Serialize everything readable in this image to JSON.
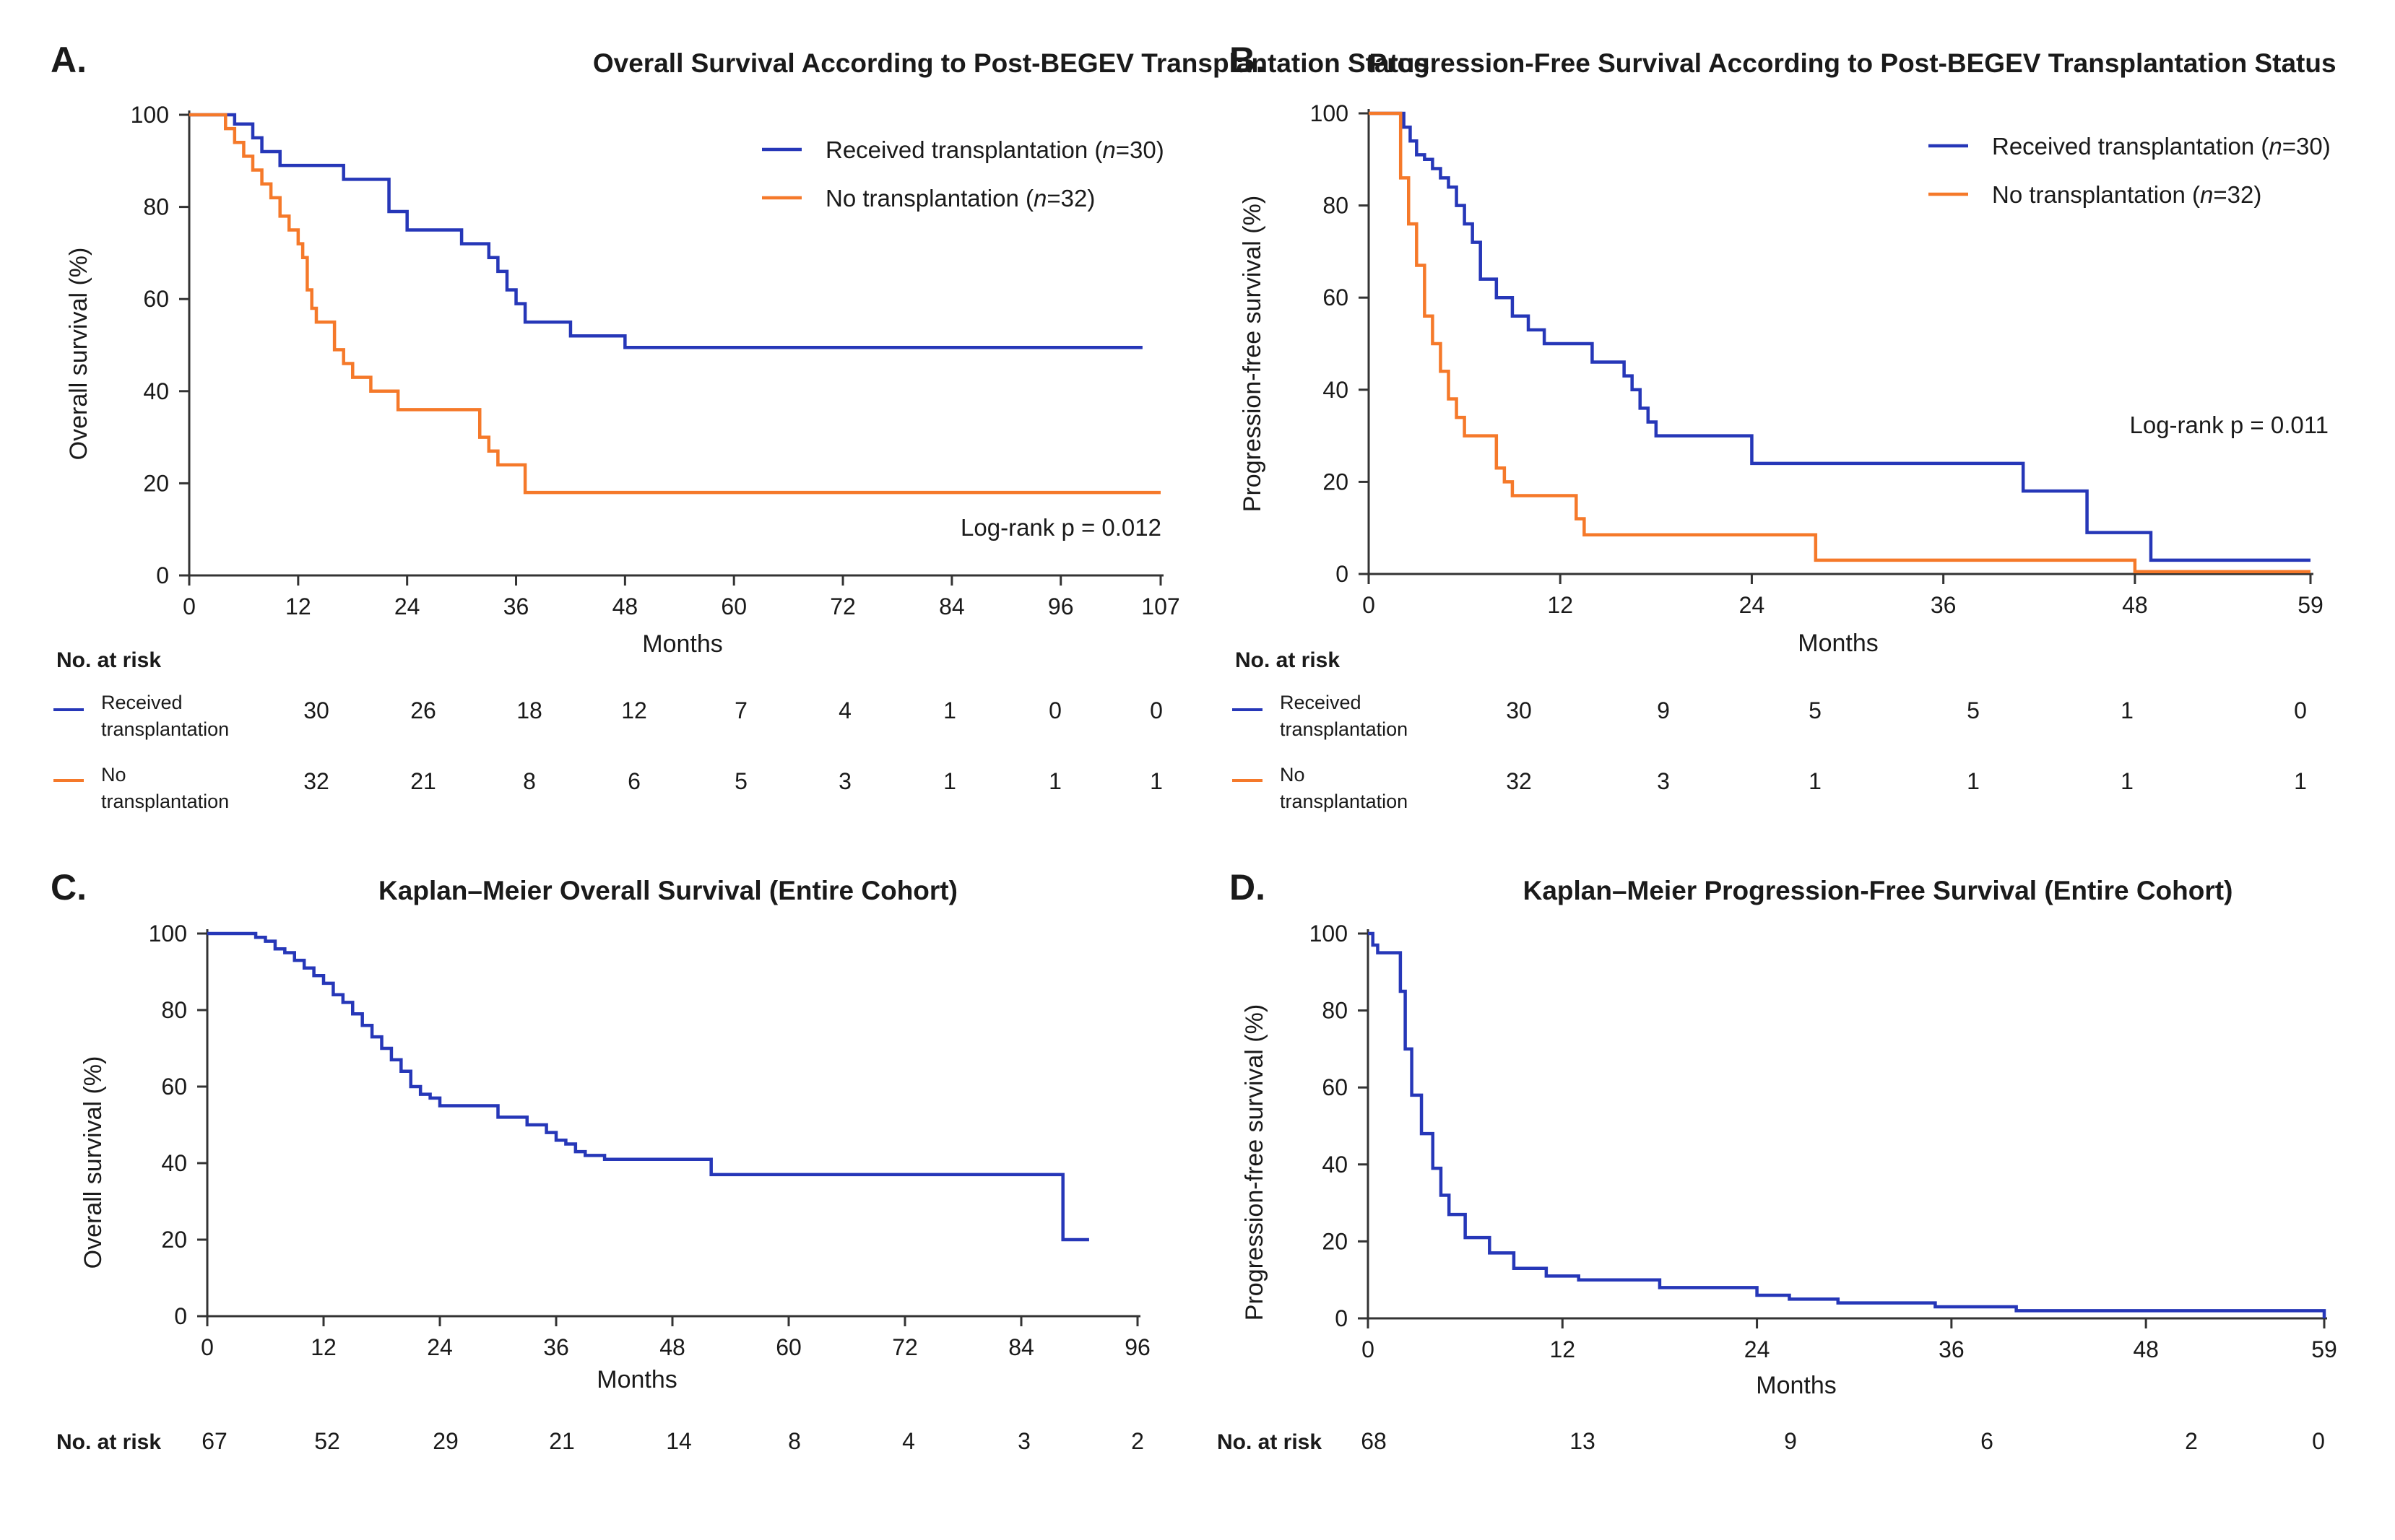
{
  "colors": {
    "transplant": "#2637b8",
    "no_transplant": "#f5792a",
    "cohort": "#2637b8",
    "axis": "#333333"
  },
  "chart_data": [
    {
      "panel": "A.",
      "type": "line",
      "title": "Overall Survival According to Post-BEGEV Transplantation Status",
      "xlabel": "Months",
      "ylabel": "Overall survival (%)",
      "xlim": [
        0,
        107
      ],
      "ylim": [
        0,
        100
      ],
      "xticks": [
        0,
        12,
        24,
        36,
        48,
        60,
        72,
        84,
        96,
        107
      ],
      "yticks": [
        0,
        20,
        40,
        60,
        80,
        100
      ],
      "annotation": "Log-rank p = 0.012",
      "legend_position": "top-right",
      "series": [
        {
          "name": "Received transplantation (n=30)",
          "legend_prefix": "Received transplantation (",
          "legend_n": "n",
          "legend_suffix": "=30)",
          "color_key": "transplant",
          "x": [
            0,
            5,
            7,
            8,
            10,
            12,
            17,
            22,
            24,
            30,
            33,
            34,
            35,
            36,
            37,
            42,
            48,
            105
          ],
          "y": [
            100,
            98,
            95,
            92,
            89,
            89,
            86,
            79,
            75,
            72,
            69,
            66,
            62,
            59,
            55,
            52,
            49.5,
            49.5
          ]
        },
        {
          "name": "No transplantation (n=32)",
          "legend_prefix": "No transplantation (",
          "legend_n": "n",
          "legend_suffix": "=32)",
          "color_key": "no_transplant",
          "x": [
            0,
            4,
            5,
            6,
            7,
            8,
            9,
            10,
            11,
            12,
            12.5,
            13,
            13.5,
            14,
            16,
            17,
            18,
            20,
            23,
            32,
            33,
            34,
            37,
            107
          ],
          "y": [
            100,
            97,
            94,
            91,
            88,
            85,
            82,
            78,
            75,
            72,
            69,
            62,
            58,
            55,
            49,
            46,
            43,
            40,
            36,
            30,
            27,
            24,
            18,
            18
          ]
        }
      ],
      "risk_table": {
        "header": "No. at risk",
        "x": [
          12,
          24,
          36,
          48,
          60,
          72,
          84,
          96,
          107
        ],
        "rows": [
          {
            "label_line1": "Received",
            "label_line2": "transplantation",
            "color_key": "transplant",
            "values": [
              "30",
              "26",
              "18",
              "12",
              "7",
              "4",
              "1",
              "0",
              "0"
            ]
          },
          {
            "label_line1": "No",
            "label_line2": "transplantation",
            "color_key": "no_transplant",
            "values": [
              "32",
              "21",
              "8",
              "6",
              "5",
              "3",
              "1",
              "1",
              "1"
            ]
          }
        ]
      }
    },
    {
      "panel": "B.",
      "type": "line",
      "title": "Progression-Free Survival According to Post-BEGEV Transplantation Status",
      "xlabel": "Months",
      "ylabel": "Progression-free survival (%)",
      "xlim": [
        0,
        59
      ],
      "ylim": [
        0,
        100
      ],
      "xticks": [
        0,
        12,
        24,
        36,
        48,
        59
      ],
      "yticks": [
        0,
        20,
        40,
        60,
        80,
        100
      ],
      "annotation": "Log-rank p = 0.011",
      "legend_position": "top-right",
      "series": [
        {
          "name": "Received transplantation (n=30)",
          "legend_prefix": "Received transplantation (",
          "legend_n": "n",
          "legend_suffix": "=30)",
          "color_key": "transplant",
          "x": [
            0,
            2.2,
            2.6,
            3,
            3.5,
            4,
            4.5,
            5,
            5.5,
            6,
            6.5,
            7,
            8,
            9,
            10,
            11,
            14,
            16,
            16.5,
            17,
            17.5,
            18,
            24,
            41,
            45,
            49,
            59
          ],
          "y": [
            100,
            97,
            94,
            91,
            90,
            88,
            86,
            84,
            80,
            76,
            72,
            64,
            60,
            56,
            53,
            50,
            46,
            43,
            40,
            36,
            33,
            30,
            24,
            18,
            9,
            3,
            3
          ]
        },
        {
          "name": "No transplantation (n=32)",
          "legend_prefix": "No transplantation (",
          "legend_n": "n",
          "legend_suffix": "=32)",
          "color_key": "no_transplant",
          "x": [
            0,
            2,
            2.5,
            3,
            3.5,
            4,
            4.5,
            5,
            5.5,
            6,
            8,
            8.5,
            9,
            13,
            13.5,
            28,
            48,
            59
          ],
          "y": [
            100,
            86,
            76,
            67,
            56,
            50,
            44,
            38,
            34,
            30,
            23,
            20,
            17,
            12,
            8.5,
            3,
            0.5,
            0.5
          ]
        }
      ],
      "risk_table": {
        "header": "No. at risk",
        "x": [
          9,
          18,
          28,
          38,
          48,
          59
        ],
        "rows": [
          {
            "label_line1": "Received",
            "label_line2": "transplantation",
            "color_key": "transplant",
            "values": [
              "30",
              "9",
              "5",
              "5",
              "1",
              "0"
            ]
          },
          {
            "label_line1": "No",
            "label_line2": "transplantation",
            "color_key": "no_transplant",
            "values": [
              "32",
              "3",
              "1",
              "1",
              "1",
              "1"
            ]
          }
        ]
      }
    },
    {
      "panel": "C.",
      "type": "line",
      "title": "Kaplan–Meier Overall Survival (Entire Cohort)",
      "xlabel": "Months",
      "ylabel": "Overall survival (%)",
      "xlim": [
        0,
        96
      ],
      "ylim": [
        0,
        100
      ],
      "xticks": [
        0,
        12,
        24,
        36,
        48,
        60,
        72,
        84,
        96
      ],
      "yticks": [
        0,
        20,
        40,
        60,
        80,
        100
      ],
      "series": [
        {
          "color_key": "cohort",
          "x": [
            0,
            5,
            6,
            7,
            8,
            9,
            10,
            11,
            12,
            13,
            14,
            15,
            16,
            17,
            18,
            19,
            20,
            21,
            22,
            23,
            24,
            26,
            30,
            33,
            35,
            36,
            37,
            38,
            39,
            41,
            52,
            88,
            88.3,
            91
          ],
          "y": [
            100,
            99,
            98,
            96,
            95,
            93,
            91,
            89,
            87,
            84,
            82,
            79,
            76,
            73,
            70,
            67,
            64,
            60,
            58,
            57,
            55,
            55,
            52,
            50,
            48,
            46,
            45,
            43,
            42,
            41,
            37,
            37,
            20,
            20
          ]
        }
      ],
      "risk_table": {
        "header": "No. at risk",
        "x": [
          0,
          12,
          24,
          36,
          48,
          60,
          72,
          84,
          96
        ],
        "rows": [
          {
            "values": [
              "67",
              "52",
              "29",
              "21",
              "14",
              "8",
              "4",
              "3",
              "2"
            ]
          }
        ]
      }
    },
    {
      "panel": "D.",
      "type": "line",
      "title": "Kaplan–Meier Progression-Free Survival (Entire Cohort)",
      "xlabel": "Months",
      "ylabel": "Progression-free survival (%)",
      "xlim": [
        0,
        59
      ],
      "ylim": [
        0,
        100
      ],
      "xticks": [
        0,
        12,
        24,
        36,
        48,
        59
      ],
      "yticks": [
        0,
        20,
        40,
        60,
        80,
        100
      ],
      "series": [
        {
          "color_key": "cohort",
          "x": [
            0,
            0.3,
            0.6,
            1.2,
            2,
            2.3,
            2.7,
            3.3,
            4,
            4.5,
            5,
            6,
            7.5,
            9,
            11,
            13,
            18,
            24,
            26,
            29,
            35,
            40,
            59
          ],
          "y": [
            100,
            97,
            95,
            95,
            85,
            70,
            58,
            48,
            39,
            32,
            27,
            21,
            17,
            13,
            11,
            10,
            8,
            6,
            5,
            4,
            3,
            2,
            0
          ]
        }
      ],
      "risk_table": {
        "header": "No. at risk",
        "x": [
          0,
          12,
          24,
          36,
          48,
          59
        ],
        "rows": [
          {
            "values": [
              "68",
              "13",
              "9",
              "6",
              "2",
              "0"
            ]
          }
        ]
      }
    }
  ]
}
